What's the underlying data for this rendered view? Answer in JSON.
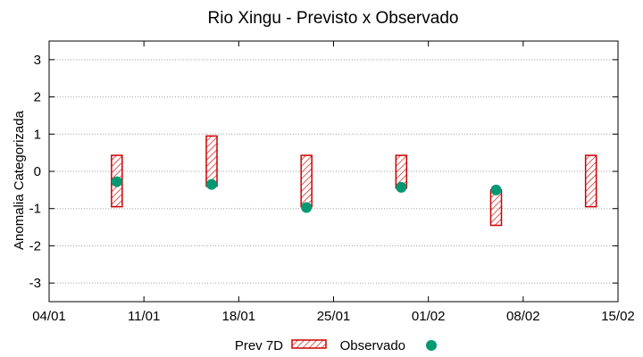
{
  "chart_data": {
    "type": "interval-scatter",
    "title": "Rio Xingu - Previsto x Observado",
    "ylabel": "Anomalia Categorizada",
    "xlabel": "",
    "xlim": [
      "2024-01-04",
      "2024-02-15"
    ],
    "ylim": [
      -3.5,
      3.5
    ],
    "yticks": [
      -3,
      -2,
      -1,
      0,
      1,
      2,
      3
    ],
    "xticks": [
      {
        "date": "2024-01-04",
        "label": "04/01"
      },
      {
        "date": "2024-01-11",
        "label": "11/01"
      },
      {
        "date": "2024-01-18",
        "label": "18/01"
      },
      {
        "date": "2024-01-25",
        "label": "25/01"
      },
      {
        "date": "2024-02-01",
        "label": "01/02"
      },
      {
        "date": "2024-02-08",
        "label": "08/02"
      },
      {
        "date": "2024-02-15",
        "label": "15/02"
      }
    ],
    "grid": true,
    "legend_position": "bottom",
    "series": [
      {
        "name": "Prev 7D",
        "kind": "interval",
        "color": "#cc0000",
        "points": [
          {
            "date": "2024-01-09",
            "low": -0.95,
            "high": 0.43
          },
          {
            "date": "2024-01-16",
            "low": -0.4,
            "high": 0.95
          },
          {
            "date": "2024-01-23",
            "low": -0.95,
            "high": 0.43
          },
          {
            "date": "2024-01-30",
            "low": -0.45,
            "high": 0.43
          },
          {
            "date": "2024-02-06",
            "low": -1.45,
            "high": -0.5
          },
          {
            "date": "2024-02-13",
            "low": -0.95,
            "high": 0.43
          }
        ]
      },
      {
        "name": "Observado",
        "kind": "point",
        "color": "#009973",
        "points": [
          {
            "date": "2024-01-09",
            "value": -0.28
          },
          {
            "date": "2024-01-16",
            "value": -0.35
          },
          {
            "date": "2024-01-23",
            "value": -0.97
          },
          {
            "date": "2024-01-30",
            "value": -0.43
          },
          {
            "date": "2024-02-06",
            "value": -0.5
          }
        ]
      }
    ]
  }
}
